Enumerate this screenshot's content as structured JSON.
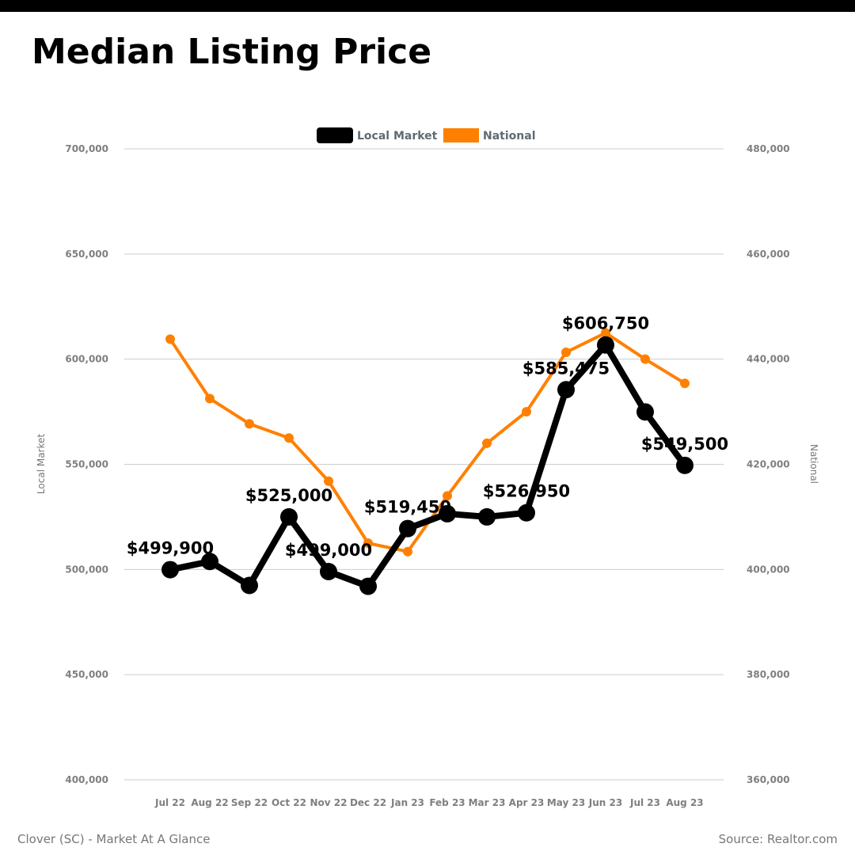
{
  "header": {
    "title": "Median Listing Price"
  },
  "footer": {
    "left": "Clover (SC) - Market At A Glance",
    "right": "Source: Realtor.com"
  },
  "colors": {
    "local": "#000000",
    "national": "#ff8000",
    "grid": "#cccccc",
    "tick": "#7f7f7f"
  },
  "chart_data": {
    "type": "line",
    "categories": [
      "Jul 22",
      "Aug 22",
      "Sep 22",
      "Oct 22",
      "Nov 22",
      "Dec 22",
      "Jan 23",
      "Feb 23",
      "Mar 23",
      "Apr 23",
      "May 23",
      "Jun 23",
      "Jul 23",
      "Aug 23"
    ],
    "series": [
      {
        "name": "Local Market",
        "axis": "left",
        "values": [
          499900,
          503800,
          492400,
          525000,
          499000,
          492000,
          519450,
          526500,
          525000,
          526950,
          585475,
          606750,
          574900,
          549500
        ],
        "labels": [
          "$499,900",
          null,
          null,
          "$525,000",
          "$499,000",
          null,
          "$519,450",
          null,
          null,
          "$526,950",
          "$585,475",
          "$606,750",
          null,
          "$549,500"
        ]
      },
      {
        "name": "National",
        "axis": "right",
        "values": [
          443800,
          432500,
          427700,
          425000,
          416800,
          405000,
          403400,
          414000,
          424000,
          430000,
          441300,
          445000,
          440000,
          435400
        ]
      }
    ],
    "y_left": {
      "label": "Local Market",
      "ylim": [
        400000,
        700000
      ],
      "ticks": [
        "400,000",
        "450,000",
        "500,000",
        "550,000",
        "600,000",
        "650,000",
        "700,000"
      ]
    },
    "y_right": {
      "label": "National",
      "ylim": [
        360000,
        480000
      ],
      "ticks": [
        "360,000",
        "380,000",
        "400,000",
        "420,000",
        "440,000",
        "460,000",
        "480,000"
      ]
    },
    "grid": true,
    "legend": "top-center"
  }
}
